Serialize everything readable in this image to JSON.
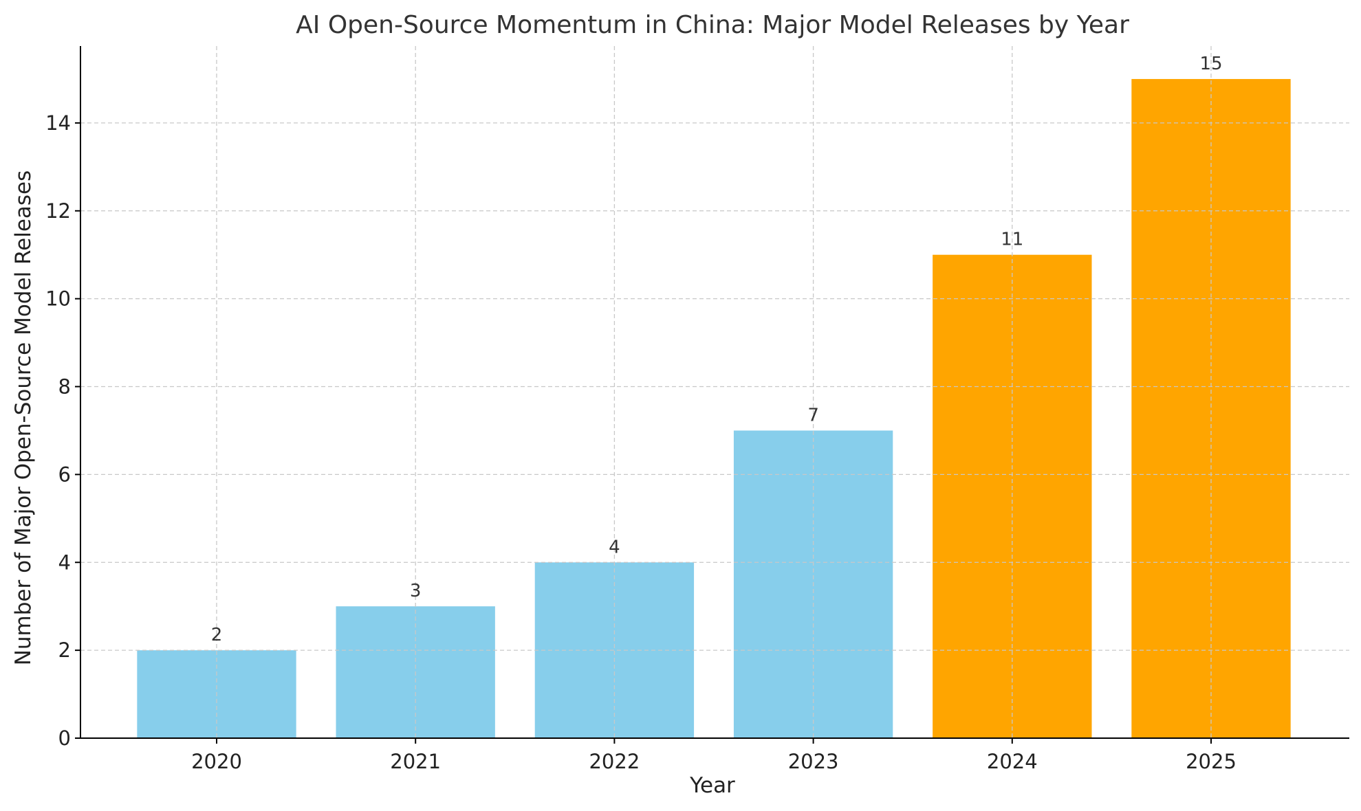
{
  "chart_data": {
    "type": "bar",
    "title": "AI Open-Source Momentum in China: Major Model Releases by Year",
    "xlabel": "Year",
    "ylabel": "Number of Major Open-Source Model Releases",
    "categories": [
      "2020",
      "2021",
      "2022",
      "2023",
      "2024",
      "2025"
    ],
    "values": [
      2,
      3,
      4,
      7,
      11,
      15
    ],
    "colors": [
      "#87ceeb",
      "#87ceeb",
      "#87ceeb",
      "#87ceeb",
      "#ffa500",
      "#ffa500"
    ],
    "ylim": [
      0,
      15.75
    ],
    "yticks": [
      0,
      2,
      4,
      6,
      8,
      10,
      12,
      14
    ],
    "grid": true,
    "data_labels": true
  }
}
